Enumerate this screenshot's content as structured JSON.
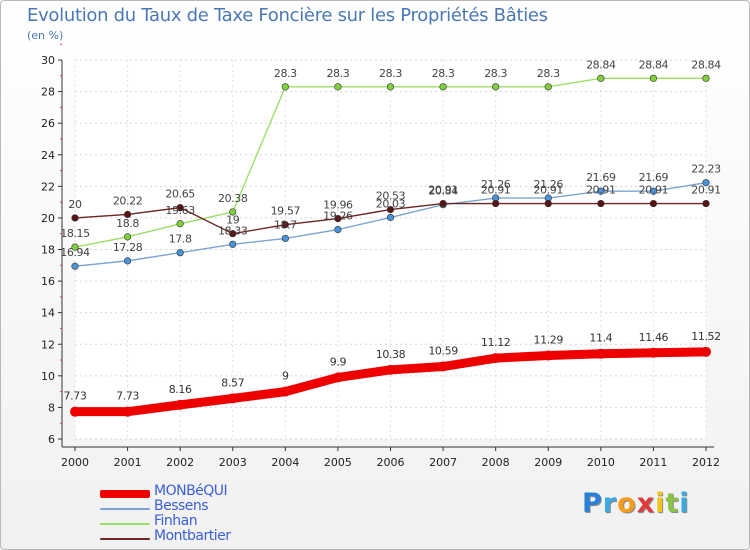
{
  "chart_data": {
    "type": "line",
    "title": "Evolution du Taux de Taxe Foncière sur les Propriétés Bâties",
    "ylabel": "(en %)",
    "xlabel": "",
    "x": [
      "2000",
      "2001",
      "2002",
      "2003",
      "2004",
      "2005",
      "2006",
      "2007",
      "2008",
      "2009",
      "2010",
      "2011",
      "2012"
    ],
    "ylim": [
      6,
      30
    ],
    "yticks": [
      6,
      8,
      10,
      12,
      14,
      16,
      18,
      20,
      22,
      24,
      26,
      28,
      30
    ],
    "grid": true,
    "legend_position": "bottom-left",
    "series": [
      {
        "name": "MONBéQUI",
        "color": "#ee0000",
        "emphasis": true,
        "values": [
          7.73,
          7.73,
          8.16,
          8.57,
          9,
          9.9,
          10.38,
          10.59,
          11.12,
          11.29,
          11.4,
          11.46,
          11.52
        ],
        "labels": [
          "7.73",
          "7.73",
          "8.16",
          "8.57",
          "9",
          "9.9",
          "10.38",
          "10.59",
          "11.12",
          "11.29",
          "11.4",
          "11.46",
          "11.52"
        ]
      },
      {
        "name": "Bessens",
        "color": "#7aa5d2",
        "marker": "#4b93d8",
        "values": [
          16.94,
          17.28,
          17.8,
          18.33,
          18.7,
          19.26,
          20.03,
          20.84,
          21.26,
          21.26,
          21.69,
          21.69,
          22.23
        ],
        "labels": [
          "16.94",
          "17.28",
          "17.8",
          "18.33",
          "18.7",
          "19.26",
          "20.03",
          "20.84",
          "21.26",
          "21.26",
          "21.69",
          "21.69",
          "22.23"
        ]
      },
      {
        "name": "Finhan",
        "color": "#99e066",
        "marker": "#7fcf3f",
        "values": [
          18.15,
          18.8,
          19.63,
          20.38,
          28.3,
          28.3,
          28.3,
          28.3,
          28.3,
          28.3,
          28.84,
          28.84,
          28.84
        ],
        "labels": [
          "18.15",
          "18.8",
          "19.63",
          "20.38",
          "28.3",
          "28.3",
          "28.3",
          "28.3",
          "28.3",
          "28.3",
          "28.84",
          "28.84",
          "28.84"
        ]
      },
      {
        "name": "Montbartier",
        "color": "#6e2525",
        "marker": "#5a1414",
        "values": [
          20,
          20.22,
          20.65,
          19,
          19.57,
          19.96,
          20.53,
          20.91,
          20.91,
          20.91,
          20.91,
          20.91,
          20.91
        ],
        "labels": [
          "20",
          "20.22",
          "20.65",
          "19",
          "19.57",
          "19.96",
          "20.53",
          "20.91",
          "20.91",
          "20.91",
          "20.91",
          "20.91",
          "20.91"
        ]
      }
    ]
  },
  "logo": {
    "letters": [
      "P",
      "r",
      "o",
      "x",
      "i",
      "t",
      "i"
    ],
    "colors": [
      "#2a7fd6",
      "#39a9e0",
      "#f39c1e",
      "#e03a3a",
      "#f0c419",
      "#8bc34a",
      "#39a9e0"
    ]
  }
}
